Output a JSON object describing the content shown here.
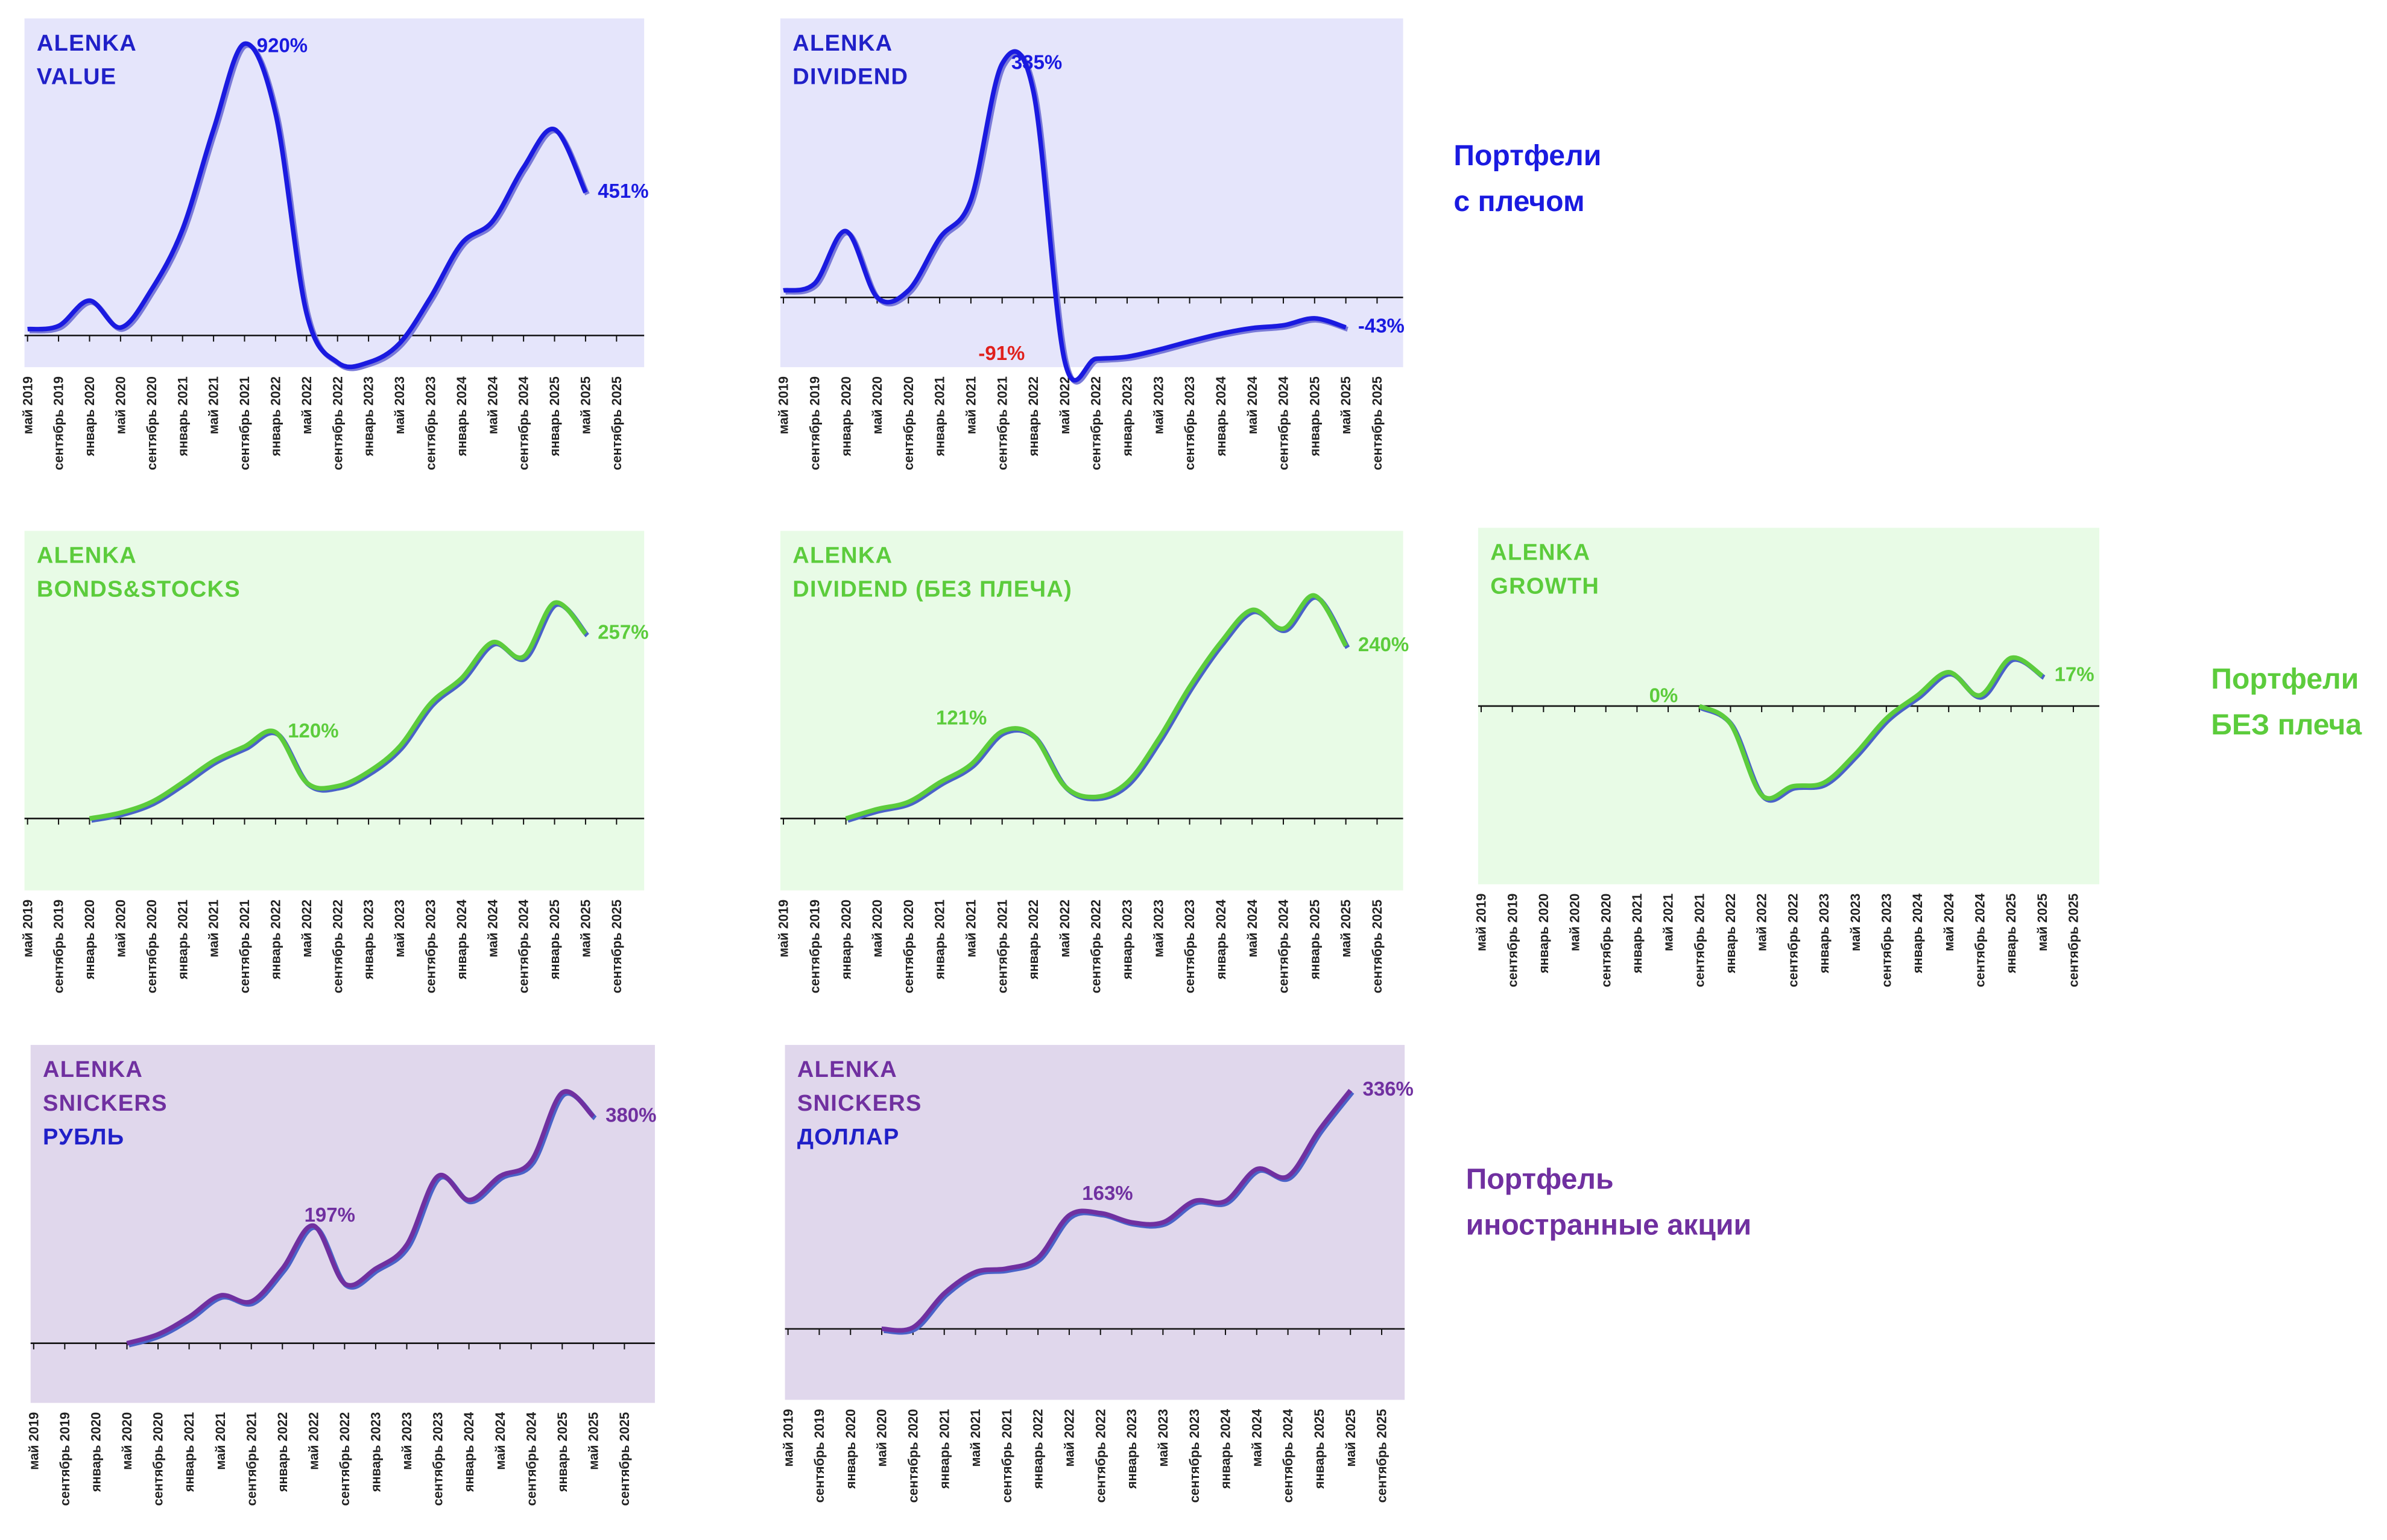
{
  "chart_data": [
    {
      "type": "line",
      "title": [
        "ALENKA",
        "VALUE"
      ],
      "title_colors": [
        "#2020c8",
        "#2020c8"
      ],
      "background": "#e5e5fb",
      "color": "#1a1ae0",
      "shadow": "#7a7ad8",
      "label_color": "#1a1ae0",
      "categories": [
        "май 2019",
        "сентябрь 2019",
        "январь 2020",
        "май 2020",
        "сентябрь 2020",
        "январь 2021",
        "май 2021",
        "сентябрь 2021",
        "январь 2022",
        "май 2022",
        "сентябрь 2022",
        "январь 2023",
        "май 2023",
        "сентябрь 2023",
        "январь 2024",
        "май 2024",
        "сентябрь 2024",
        "январь 2025",
        "май 2025",
        "сентябрь 2025"
      ],
      "values": [
        20,
        30,
        110,
        25,
        145,
        335,
        650,
        920,
        700,
        70,
        -85,
        -85,
        -25,
        120,
        290,
        360,
        530,
        650,
        451,
        null
      ],
      "value_labels": [
        null,
        null,
        null,
        null,
        null,
        null,
        null,
        "920%",
        null,
        null,
        null,
        null,
        null,
        null,
        null,
        null,
        null,
        null,
        "451%",
        null
      ],
      "ylim": [
        -100,
        1000
      ]
    },
    {
      "type": "line",
      "title": [
        "ALENKA",
        "DIVIDEND"
      ],
      "title_colors": [
        "#2020c8",
        "#2020c8"
      ],
      "background": "#e5e5fb",
      "color": "#1a1ae0",
      "shadow": "#7a7ad8",
      "label_color": "#1a1ae0",
      "categories": [
        "май 2019",
        "сентябрь 2019",
        "январь 2020",
        "май 2020",
        "сентябрь 2020",
        "январь 2021",
        "май 2021",
        "сентябрь 2021",
        "январь 2022",
        "май 2022",
        "сентябрь 2022",
        "январь 2023",
        "май 2023",
        "сентябрь 2023",
        "январь 2024",
        "май 2024",
        "сентябрь 2024",
        "январь 2025",
        "май 2025",
        "сентябрь 2025"
      ],
      "values": [
        10,
        20,
        95,
        0,
        10,
        85,
        140,
        335,
        295,
        -91,
        -88,
        -85,
        -75,
        -63,
        -52,
        -44,
        -40,
        -30,
        -43,
        null
      ],
      "value_labels": [
        null,
        null,
        null,
        null,
        null,
        null,
        null,
        "335%",
        null,
        "-91%",
        null,
        null,
        null,
        null,
        null,
        null,
        null,
        null,
        "-43%",
        null
      ],
      "value_label_colors": [
        null,
        null,
        null,
        null,
        null,
        null,
        null,
        null,
        null,
        "#e0201c",
        null,
        null,
        null,
        null,
        null,
        null,
        null,
        null,
        null,
        null
      ],
      "ylim": [
        -100,
        400
      ]
    },
    {
      "type": "line",
      "title": [
        "ALENKA",
        "BONDS&STOCKS"
      ],
      "title_colors": [
        "#5ccc3c",
        "#5ccc3c"
      ],
      "background": "#e8fbe6",
      "color": "#5ccc3c",
      "shadow": "#4a62c8",
      "label_color": "#5ccc3c",
      "categories": [
        "май 2019",
        "сентябрь 2019",
        "январь 2020",
        "май 2020",
        "сентябрь 2020",
        "январь 2021",
        "май 2021",
        "сентябрь 2021",
        "январь 2022",
        "май 2022",
        "сентябрь 2022",
        "январь 2023",
        "май 2023",
        "сентябрь 2023",
        "январь 2024",
        "май 2024",
        "сентябрь 2024",
        "январь 2025",
        "май 2025",
        "сентябрь 2025"
      ],
      "values": [
        null,
        null,
        0,
        8,
        23,
        50,
        80,
        100,
        120,
        50,
        45,
        65,
        100,
        160,
        195,
        245,
        225,
        300,
        257,
        null
      ],
      "value_labels": [
        null,
        null,
        null,
        null,
        null,
        null,
        null,
        null,
        "120%",
        null,
        null,
        null,
        null,
        null,
        null,
        null,
        null,
        null,
        "257%",
        null
      ],
      "ylim": [
        -100,
        400
      ]
    },
    {
      "type": "line",
      "title": [
        "ALENKA",
        "DIVIDEND (БЕЗ ПЛЕЧА)"
      ],
      "title_colors": [
        "#5ccc3c",
        "#5ccc3c"
      ],
      "background": "#e8fbe6",
      "color": "#5ccc3c",
      "shadow": "#4a62c8",
      "label_color": "#5ccc3c",
      "categories": [
        "май 2019",
        "сентябрь 2019",
        "январь 2020",
        "май 2020",
        "сентябрь 2020",
        "январь 2021",
        "май 2021",
        "сентябрь 2021",
        "январь 2022",
        "май 2022",
        "сентябрь 2022",
        "январь 2023",
        "май 2023",
        "сентябрь 2023",
        "январь 2024",
        "май 2024",
        "сентябрь 2024",
        "январь 2025",
        "май 2025",
        "сентябрь 2025"
      ],
      "values": [
        null,
        null,
        0,
        13,
        23,
        50,
        75,
        121,
        115,
        45,
        30,
        50,
        110,
        183,
        245,
        290,
        264,
        310,
        240,
        null
      ],
      "value_labels": [
        null,
        null,
        null,
        null,
        null,
        null,
        null,
        "121%",
        null,
        null,
        null,
        null,
        null,
        null,
        null,
        null,
        null,
        null,
        "240%",
        null
      ],
      "ylim": [
        -100,
        400
      ]
    },
    {
      "type": "line",
      "title": [
        "ALENKA",
        "GROWTH"
      ],
      "title_colors": [
        "#5ccc3c",
        "#5ccc3c"
      ],
      "background": "#e8fbe6",
      "color": "#5ccc3c",
      "shadow": "#4a62c8",
      "label_color": "#5ccc3c",
      "categories": [
        "май 2019",
        "сентябрь 2019",
        "январь 2020",
        "май 2020",
        "сентябрь 2020",
        "январь 2021",
        "май 2021",
        "сентябрь 2021",
        "январь 2022",
        "май 2022",
        "сентябрь 2022",
        "январь 2023",
        "май 2023",
        "сентябрь 2023",
        "январь 2024",
        "май 2024",
        "сентябрь 2024",
        "январь 2025",
        "май 2025",
        "сентябрь 2025"
      ],
      "values": [
        null,
        null,
        null,
        null,
        null,
        null,
        null,
        0,
        -10,
        -50,
        -45,
        -43,
        -27,
        -7,
        6,
        19,
        6,
        27,
        17,
        null
      ],
      "value_labels": [
        null,
        null,
        null,
        null,
        null,
        null,
        null,
        "0%",
        null,
        null,
        null,
        null,
        null,
        null,
        null,
        null,
        null,
        null,
        "17%",
        null
      ],
      "ylim": [
        -100,
        100
      ]
    },
    {
      "type": "line",
      "title": [
        "ALENKA",
        "SNICKERS",
        "РУБЛЬ"
      ],
      "title_colors": [
        "#7030a0",
        "#7030a0",
        "#2020c8"
      ],
      "background": "#e0d7ec",
      "color": "#7030a0",
      "shadow": "#4a62c8",
      "label_color": "#7030a0",
      "categories": [
        "май 2019",
        "сентябрь 2019",
        "январь 2020",
        "май 2020",
        "сентябрь 2020",
        "январь 2021",
        "май 2021",
        "сентябрь 2021",
        "январь 2022",
        "май 2022",
        "сентябрь 2022",
        "январь 2023",
        "май 2023",
        "сентябрь 2023",
        "январь 2024",
        "май 2024",
        "сентябрь 2024",
        "январь 2025",
        "май 2025",
        "сентябрь 2025"
      ],
      "values": [
        null,
        null,
        null,
        0,
        15,
        44,
        80,
        70,
        125,
        197,
        100,
        125,
        165,
        280,
        240,
        280,
        305,
        420,
        380,
        null
      ],
      "value_labels": [
        null,
        null,
        null,
        null,
        null,
        null,
        null,
        null,
        null,
        "197%",
        null,
        null,
        null,
        null,
        null,
        null,
        null,
        null,
        "380%",
        null
      ],
      "ylim": [
        -100,
        500
      ]
    },
    {
      "type": "line",
      "title": [
        "ALENKA",
        "SNICKERS",
        "ДОЛЛАР"
      ],
      "title_colors": [
        "#7030a0",
        "#7030a0",
        "#2020c8"
      ],
      "background": "#e0d7ec",
      "color": "#7030a0",
      "shadow": "#4a62c8",
      "label_color": "#7030a0",
      "categories": [
        "май 2019",
        "сентябрь 2019",
        "январь 2020",
        "май 2020",
        "сентябрь 2020",
        "январь 2021",
        "май 2021",
        "сентябрь 2021",
        "январь 2022",
        "май 2022",
        "сентябрь 2022",
        "январь 2023",
        "май 2023",
        "сентябрь 2023",
        "январь 2024",
        "май 2024",
        "сентябрь 2024",
        "январь 2025",
        "май 2025",
        "сентябрь 2025"
      ],
      "values": [
        null,
        null,
        null,
        0,
        2,
        50,
        80,
        85,
        100,
        160,
        163,
        150,
        150,
        180,
        180,
        225,
        215,
        280,
        336,
        null
      ],
      "value_labels": [
        null,
        null,
        null,
        null,
        null,
        null,
        null,
        null,
        null,
        null,
        "163%",
        null,
        null,
        null,
        null,
        null,
        null,
        null,
        "336%",
        null
      ],
      "ylim": [
        -100,
        400
      ]
    }
  ],
  "sections": [
    {
      "lines": [
        "Портфели",
        "с плечом"
      ],
      "color": "#1a1ae0"
    },
    {
      "lines": [
        "Портфели",
        "БЕЗ плеча"
      ],
      "color": "#5ccc3c"
    },
    {
      "lines": [
        "Портфель",
        "иностранные акции"
      ],
      "color": "#7030a0"
    }
  ]
}
